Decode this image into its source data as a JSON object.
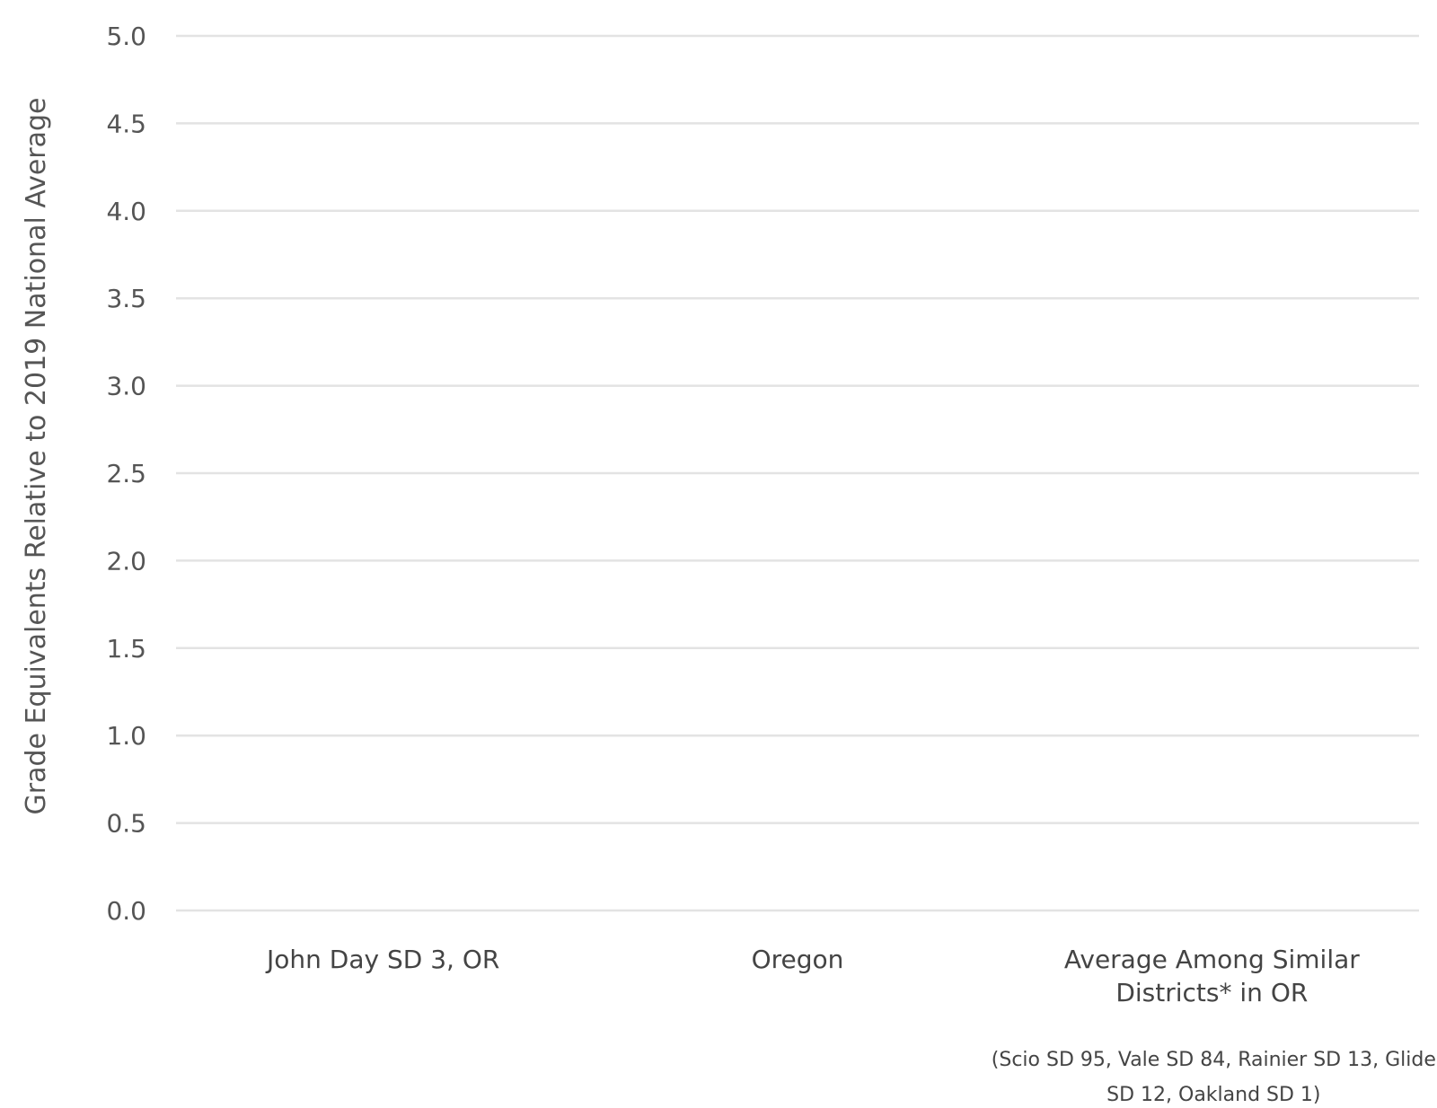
{
  "chart_data": {
    "type": "bar",
    "title": "",
    "xlabel": "",
    "ylabel": "Grade Equivalents Relative to 2019 National Average",
    "ylim": [
      0,
      5
    ],
    "yticks": [
      "0.0",
      "0.5",
      "1.0",
      "1.5",
      "2.0",
      "2.5",
      "3.0",
      "3.5",
      "4.0",
      "4.5",
      "5.0"
    ],
    "categories": [
      [
        "John Day SD 3, OR"
      ],
      [
        "Oregon"
      ],
      [
        "Average Among Similar",
        "Districts* in OR"
      ]
    ],
    "values": [
      null,
      null,
      null
    ],
    "grid": true,
    "footnote": [
      "(Scio SD 95, Vale SD 84, Rainier SD 13, Glide",
      "SD 12, Oakland SD 1)"
    ]
  }
}
